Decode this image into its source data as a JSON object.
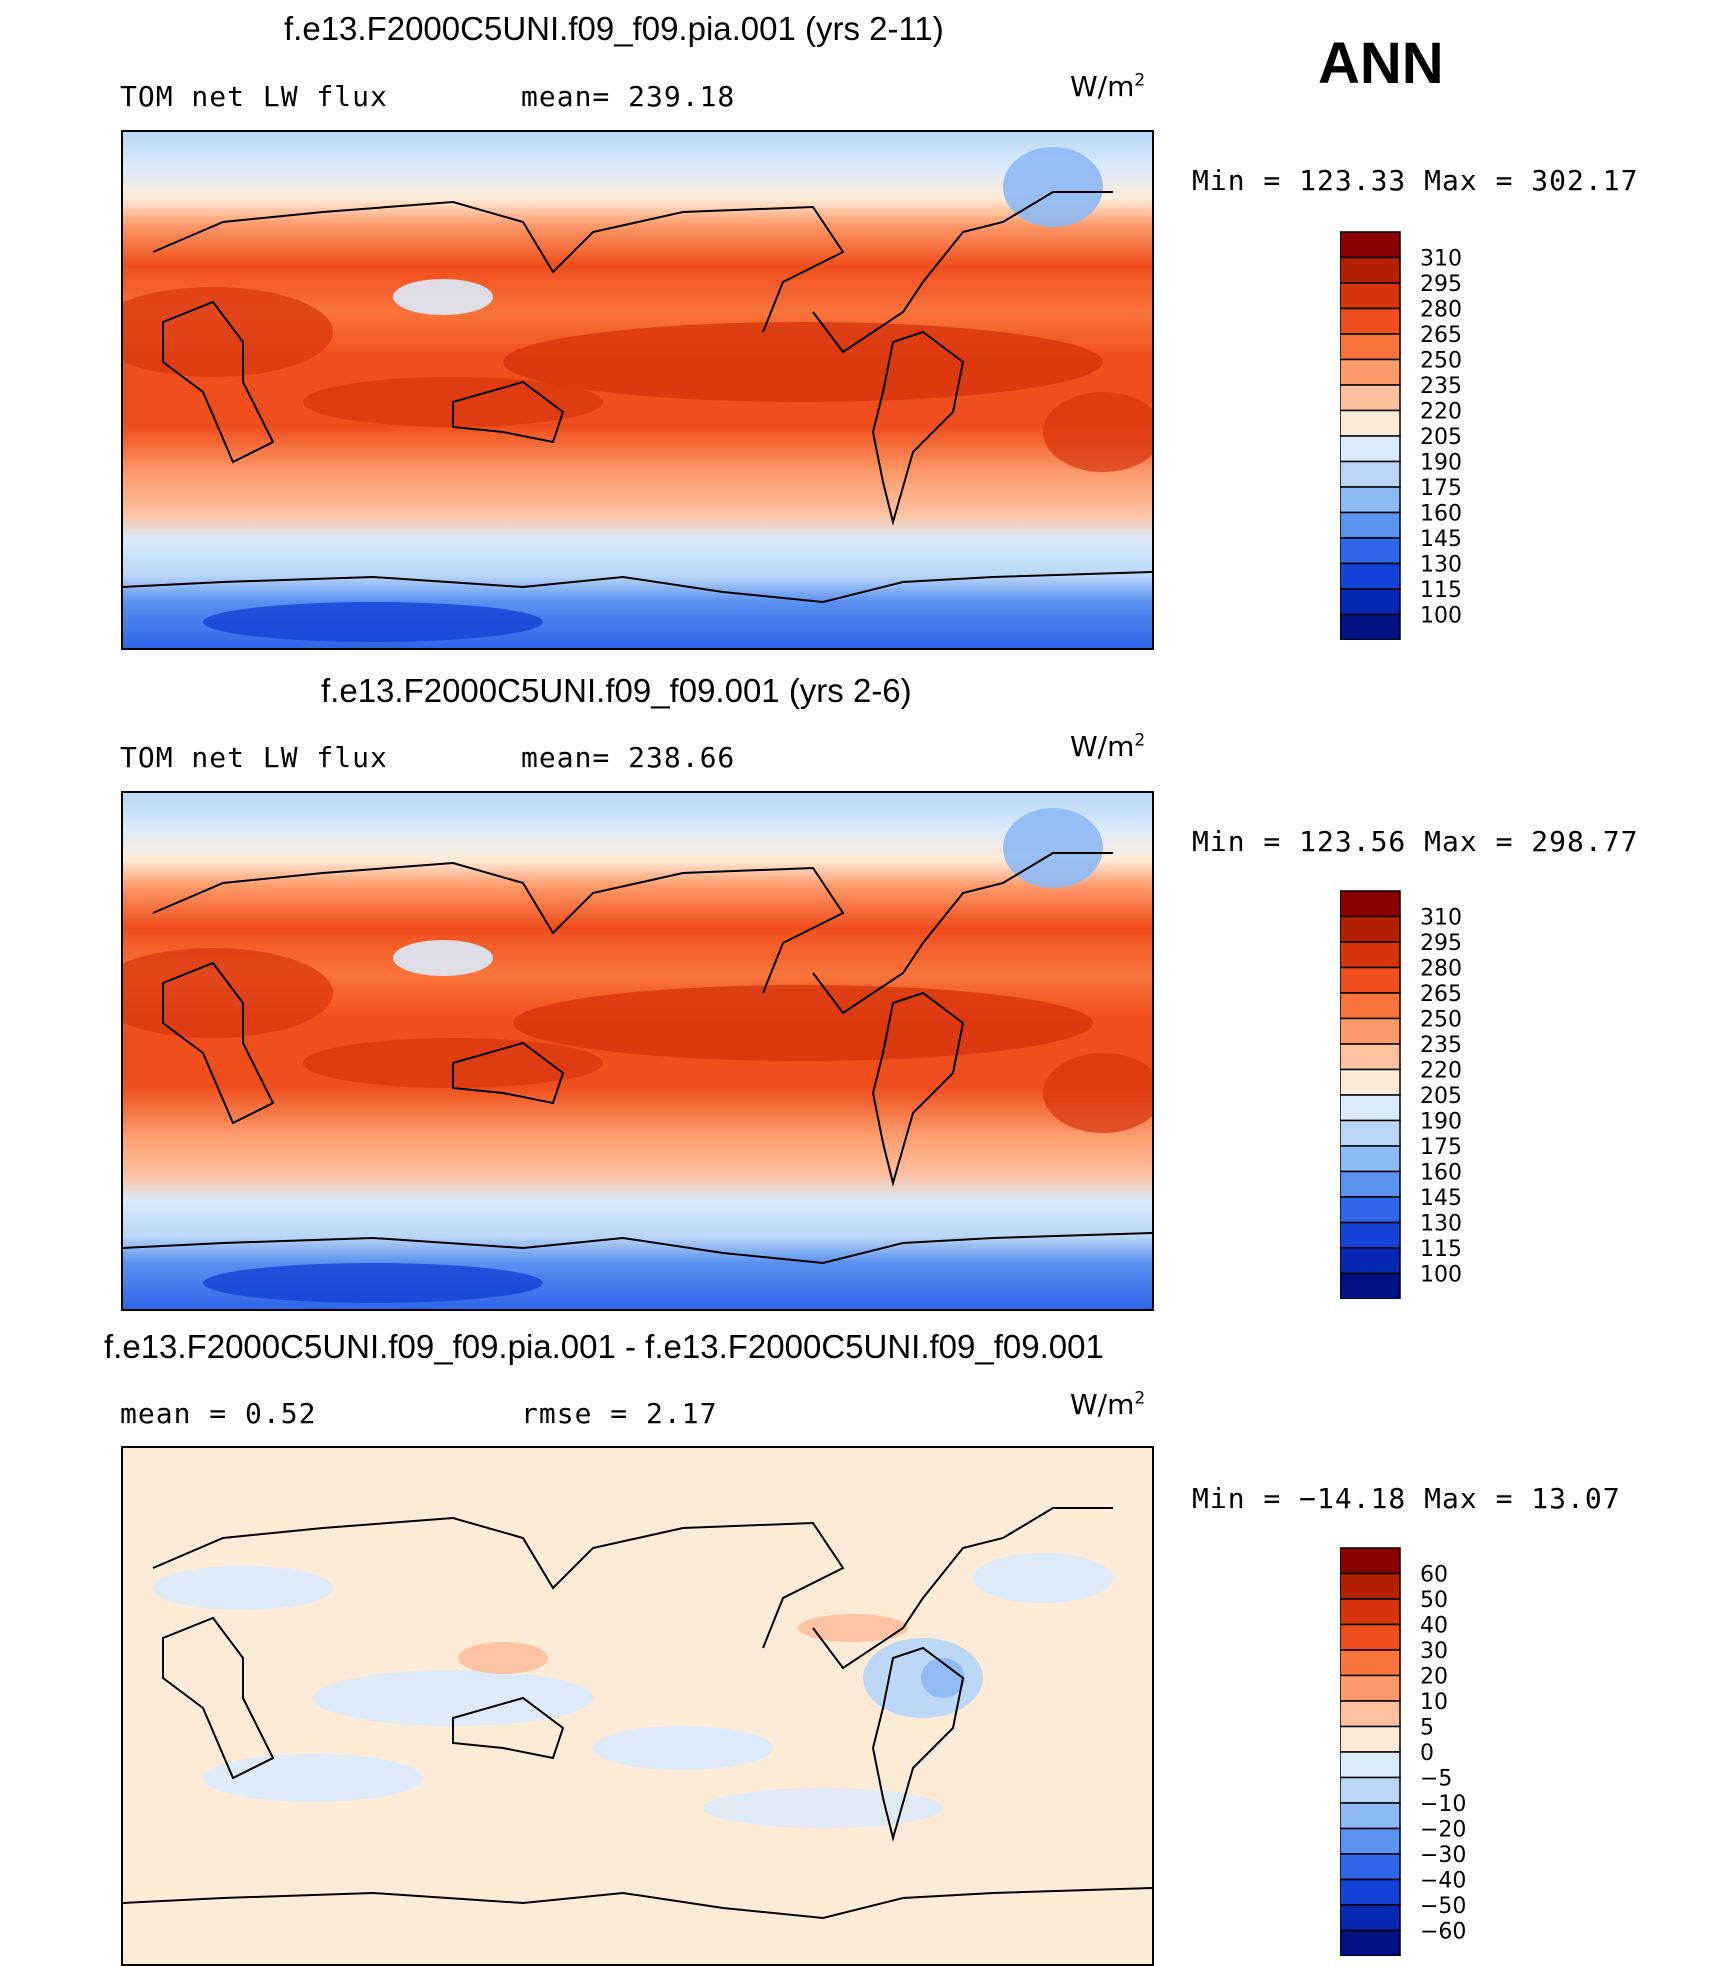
{
  "season": "ANN",
  "panels": [
    {
      "title": "f.e13.F2000C5UNI.f09_f09.pia.001 (yrs 2-11)",
      "left_label": "TOM  net  LW  flux",
      "stat_label": "mean=  239.18",
      "units": "W/m",
      "units_sup": "2",
      "minmax": "Min  =  123.33  Max  =  302.17",
      "colorbar": {
        "labels": [
          "310",
          "295",
          "280",
          "265",
          "250",
          "235",
          "220",
          "205",
          "190",
          "175",
          "160",
          "145",
          "130",
          "115",
          "100"
        ],
        "colors": [
          "#8b0000",
          "#b52000",
          "#d8350e",
          "#f04e1c",
          "#f9743b",
          "#fd9a6a",
          "#fdc1a0",
          "#feebd7",
          "#dbeafb",
          "#b9d6f8",
          "#8db9f4",
          "#5b91ef",
          "#2f66ea",
          "#1441d6",
          "#0728b4",
          "#001182"
        ]
      },
      "kind": "abs"
    },
    {
      "title": "f.e13.F2000C5UNI.f09_f09.001 (yrs 2-6)",
      "left_label": "TOM  net  LW  flux",
      "stat_label": "mean=  238.66",
      "units": "W/m",
      "units_sup": "2",
      "minmax": "Min  =  123.56  Max  =  298.77",
      "colorbar": {
        "labels": [
          "310",
          "295",
          "280",
          "265",
          "250",
          "235",
          "220",
          "205",
          "190",
          "175",
          "160",
          "145",
          "130",
          "115",
          "100"
        ],
        "colors": [
          "#8b0000",
          "#b52000",
          "#d8350e",
          "#f04e1c",
          "#f9743b",
          "#fd9a6a",
          "#fdc1a0",
          "#feebd7",
          "#dbeafb",
          "#b9d6f8",
          "#8db9f4",
          "#5b91ef",
          "#2f66ea",
          "#1441d6",
          "#0728b4",
          "#001182"
        ]
      },
      "kind": "abs"
    },
    {
      "title": "f.e13.F2000C5UNI.f09_f09.pia.001 - f.e13.F2000C5UNI.f09_f09.001",
      "left_label": "mean  =     0.52",
      "stat_label": "rmse  =     2.17",
      "units": "W/m",
      "units_sup": "2",
      "minmax": "Min  =  −14.18  Max  =    13.07",
      "colorbar": {
        "labels": [
          "60",
          "50",
          "40",
          "30",
          "20",
          "10",
          "5",
          "0",
          "−5",
          "−10",
          "−20",
          "−30",
          "−40",
          "−50",
          "−60"
        ],
        "colors": [
          "#8b0000",
          "#b52000",
          "#d8350e",
          "#f04e1c",
          "#f9743b",
          "#fd9a6a",
          "#fdc1a0",
          "#feebd7",
          "#dbeafb",
          "#b9d6f8",
          "#8db9f4",
          "#5b91ef",
          "#2f66ea",
          "#1441d6",
          "#0728b4",
          "#001182"
        ]
      },
      "kind": "diff"
    }
  ]
}
